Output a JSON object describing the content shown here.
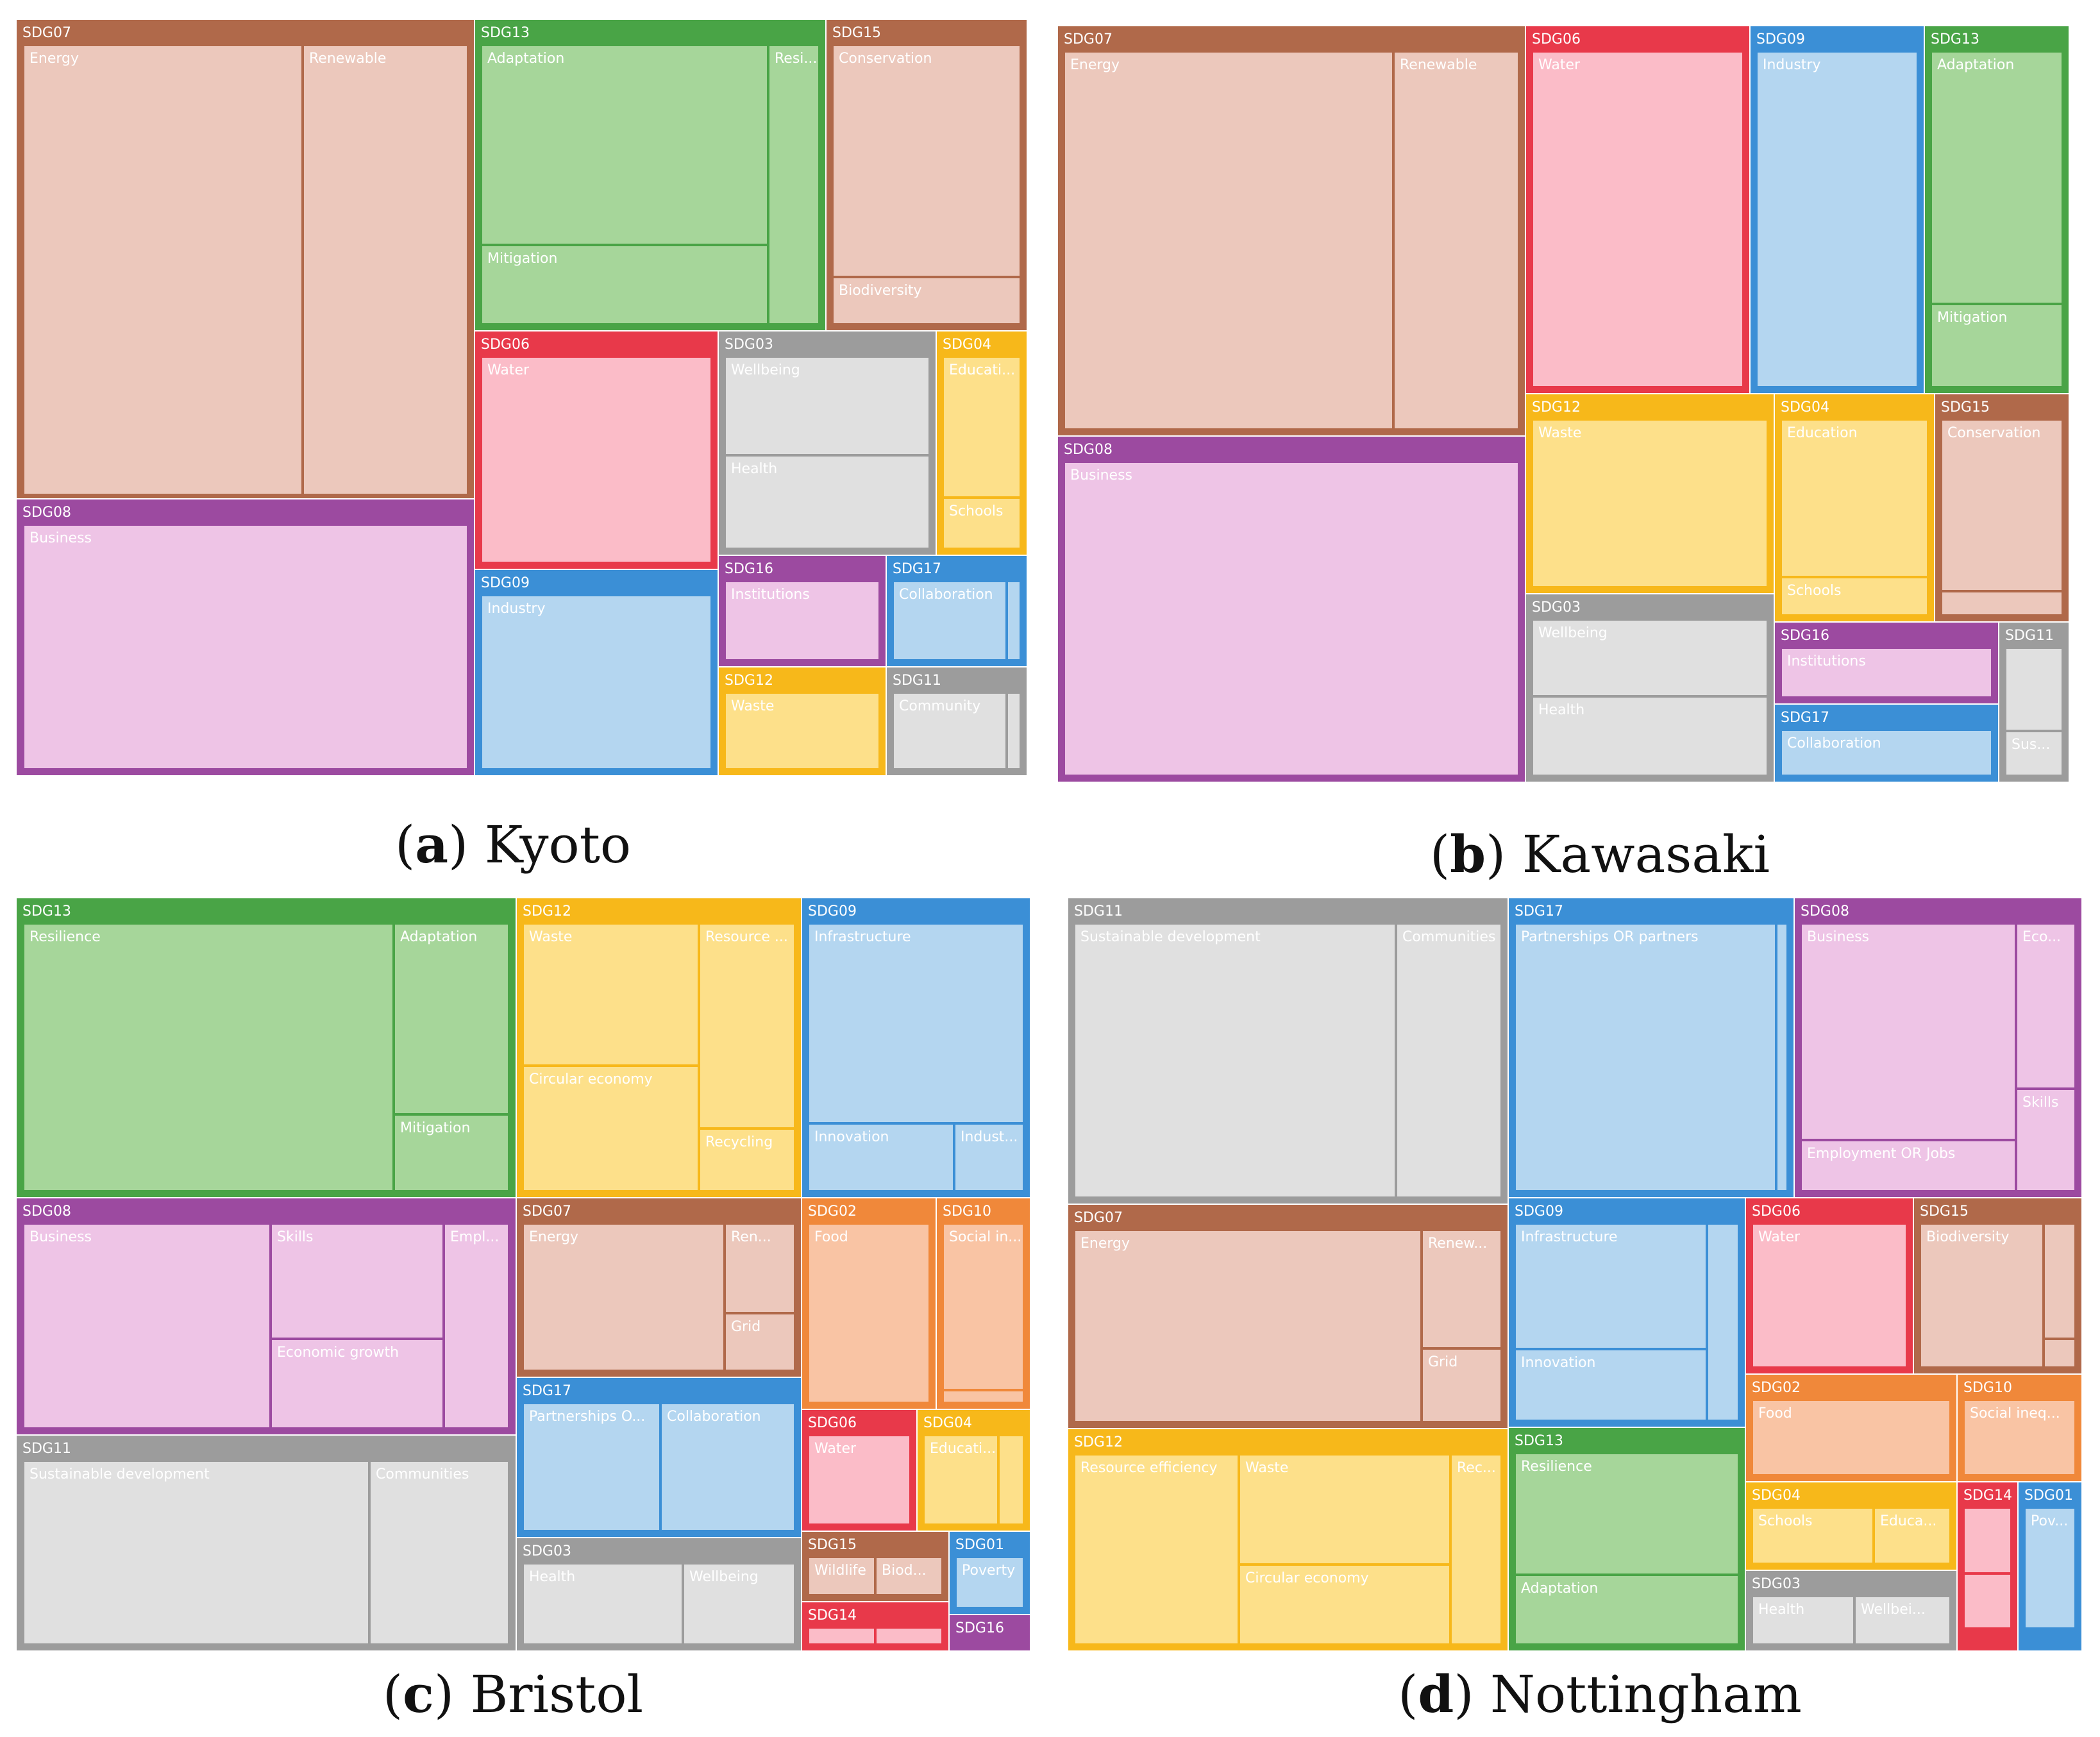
{
  "figure": {
    "colors": {
      "SDG01": "#3b8fd6",
      "SDG02": "#f0883a",
      "SDG03": "#9c9c9c",
      "SDG04": "#f7b81a",
      "SDG06": "#e8394a",
      "SDG07": "#b0694a",
      "SDG08": "#9c4aa0",
      "SDG09": "#3b8fd6",
      "SDG10": "#f0883a",
      "SDG11": "#9c9c9c",
      "SDG12": "#f7b81a",
      "SDG13": "#49a446",
      "SDG14": "#e8394a",
      "SDG15": "#b0694a",
      "SDG16": "#9c4aa0",
      "SDG17": "#3b8fd6"
    },
    "leaf_colors": {
      "SDG01": "#b4d6f0",
      "SDG02": "#f9c4a4",
      "SDG03": "#e0e0e0",
      "SDG04": "#fde08a",
      "SDG06": "#fbbcc8",
      "SDG07": "#ecc8bc",
      "SDG08": "#eec4e6",
      "SDG09": "#b4d6f0",
      "SDG10": "#f9c4a4",
      "SDG11": "#e0e0e0",
      "SDG12": "#fde08a",
      "SDG13": "#a6d69a",
      "SDG14": "#fbbcc8",
      "SDG15": "#ecc8bc",
      "SDG16": "#eec4e6",
      "SDG17": "#b4d6f0"
    }
  },
  "chart_data": [
    {
      "type": "treemap",
      "caption_letter": "a",
      "caption_text": "Kyoto",
      "groups": [
        {
          "sdg": "SDG07",
          "children": [
            {
              "label": "Energy"
            },
            {
              "label": "Renewable"
            }
          ]
        },
        {
          "sdg": "SDG08",
          "children": [
            {
              "label": "Business"
            }
          ]
        },
        {
          "sdg": "SDG13",
          "children": [
            {
              "label": "Adaptation"
            },
            {
              "label": "Mitigation"
            },
            {
              "label": "Resi..."
            }
          ]
        },
        {
          "sdg": "SDG15",
          "children": [
            {
              "label": "Conservation"
            },
            {
              "label": "Biodiversity"
            }
          ]
        },
        {
          "sdg": "SDG06",
          "children": [
            {
              "label": "Water"
            }
          ]
        },
        {
          "sdg": "SDG03",
          "children": [
            {
              "label": "Wellbeing"
            },
            {
              "label": "Health"
            }
          ]
        },
        {
          "sdg": "SDG04",
          "children": [
            {
              "label": "Educati..."
            },
            {
              "label": "Schools"
            }
          ]
        },
        {
          "sdg": "SDG09",
          "children": [
            {
              "label": "Industry"
            }
          ]
        },
        {
          "sdg": "SDG16",
          "children": [
            {
              "label": "Institutions"
            }
          ]
        },
        {
          "sdg": "SDG17",
          "children": [
            {
              "label": "Collaboration"
            },
            {
              "label": ""
            }
          ]
        },
        {
          "sdg": "SDG12",
          "children": [
            {
              "label": "Waste"
            }
          ]
        },
        {
          "sdg": "SDG11",
          "children": [
            {
              "label": "Community"
            },
            {
              "label": ""
            }
          ]
        }
      ]
    },
    {
      "type": "treemap",
      "caption_letter": "b",
      "caption_text": "Kawasaki",
      "groups": [
        {
          "sdg": "SDG07",
          "children": [
            {
              "label": "Energy"
            },
            {
              "label": "Renewable"
            }
          ]
        },
        {
          "sdg": "SDG08",
          "children": [
            {
              "label": "Business"
            }
          ]
        },
        {
          "sdg": "SDG06",
          "children": [
            {
              "label": "Water"
            }
          ]
        },
        {
          "sdg": "SDG09",
          "children": [
            {
              "label": "Industry"
            }
          ]
        },
        {
          "sdg": "SDG13",
          "children": [
            {
              "label": "Adaptation"
            },
            {
              "label": "Mitigation"
            }
          ]
        },
        {
          "sdg": "SDG12",
          "children": [
            {
              "label": "Waste"
            }
          ]
        },
        {
          "sdg": "SDG04",
          "children": [
            {
              "label": "Education"
            },
            {
              "label": "Schools"
            }
          ]
        },
        {
          "sdg": "SDG15",
          "children": [
            {
              "label": "Conservation"
            },
            {
              "label": ""
            }
          ]
        },
        {
          "sdg": "SDG03",
          "children": [
            {
              "label": "Wellbeing"
            },
            {
              "label": "Health"
            }
          ]
        },
        {
          "sdg": "SDG16",
          "children": [
            {
              "label": "Institutions"
            }
          ]
        },
        {
          "sdg": "SDG11",
          "children": [
            {
              "label": ""
            },
            {
              "label": "Sus..."
            }
          ]
        },
        {
          "sdg": "SDG17",
          "children": [
            {
              "label": "Collaboration"
            }
          ]
        }
      ]
    },
    {
      "type": "treemap",
      "caption_letter": "c",
      "caption_text": "Bristol",
      "groups": [
        {
          "sdg": "SDG13",
          "children": [
            {
              "label": "Resilience"
            },
            {
              "label": "Adaptation"
            },
            {
              "label": "Mitigation"
            }
          ]
        },
        {
          "sdg": "SDG12",
          "children": [
            {
              "label": "Waste"
            },
            {
              "label": "Resource ..."
            },
            {
              "label": "Circular economy"
            },
            {
              "label": "Recycling"
            }
          ]
        },
        {
          "sdg": "SDG09",
          "children": [
            {
              "label": "Infrastructure"
            },
            {
              "label": "Innovation"
            },
            {
              "label": "Indust..."
            }
          ]
        },
        {
          "sdg": "SDG08",
          "children": [
            {
              "label": "Business"
            },
            {
              "label": "Skills"
            },
            {
              "label": "Economic growth"
            },
            {
              "label": "Empl..."
            }
          ]
        },
        {
          "sdg": "SDG07",
          "children": [
            {
              "label": "Energy"
            },
            {
              "label": "Ren..."
            },
            {
              "label": "Grid"
            }
          ]
        },
        {
          "sdg": "SDG02",
          "children": [
            {
              "label": "Food"
            }
          ]
        },
        {
          "sdg": "SDG10",
          "children": [
            {
              "label": "Social in..."
            },
            {
              "label": ""
            }
          ]
        },
        {
          "sdg": "SDG17",
          "children": [
            {
              "label": "Partnerships O..."
            },
            {
              "label": "Collaboration"
            }
          ]
        },
        {
          "sdg": "SDG06",
          "children": [
            {
              "label": "Water"
            }
          ]
        },
        {
          "sdg": "SDG04",
          "children": [
            {
              "label": "Educati..."
            },
            {
              "label": ""
            }
          ]
        },
        {
          "sdg": "SDG11",
          "children": [
            {
              "label": "Sustainable development"
            },
            {
              "label": "Communities"
            }
          ]
        },
        {
          "sdg": "SDG03",
          "children": [
            {
              "label": "Health"
            },
            {
              "label": "Wellbeing"
            }
          ]
        },
        {
          "sdg": "SDG15",
          "children": [
            {
              "label": "Wildlife"
            },
            {
              "label": "Biod..."
            }
          ]
        },
        {
          "sdg": "SDG01",
          "children": [
            {
              "label": "Poverty"
            }
          ]
        },
        {
          "sdg": "SDG14",
          "children": [
            {
              "label": ""
            },
            {
              "label": ""
            }
          ]
        },
        {
          "sdg": "SDG16",
          "children": []
        }
      ]
    },
    {
      "type": "treemap",
      "caption_letter": "d",
      "caption_text": "Nottingham",
      "groups": [
        {
          "sdg": "SDG11",
          "children": [
            {
              "label": "Sustainable development"
            },
            {
              "label": "Communities"
            }
          ]
        },
        {
          "sdg": "SDG17",
          "children": [
            {
              "label": "Partnerships OR partners"
            },
            {
              "label": ""
            }
          ]
        },
        {
          "sdg": "SDG08",
          "children": [
            {
              "label": "Business"
            },
            {
              "label": "Eco..."
            },
            {
              "label": "Skills"
            },
            {
              "label": "Employment OR Jobs"
            }
          ]
        },
        {
          "sdg": "SDG07",
          "children": [
            {
              "label": "Energy"
            },
            {
              "label": "Renew..."
            },
            {
              "label": "Grid"
            }
          ]
        },
        {
          "sdg": "SDG09",
          "children": [
            {
              "label": "Infrastructure"
            },
            {
              "label": "Innovation"
            },
            {
              "label": ""
            }
          ]
        },
        {
          "sdg": "SDG06",
          "children": [
            {
              "label": "Water"
            }
          ]
        },
        {
          "sdg": "SDG15",
          "children": [
            {
              "label": "Biodiversity"
            },
            {
              "label": ""
            },
            {
              "label": ""
            }
          ]
        },
        {
          "sdg": "SDG02",
          "children": [
            {
              "label": "Food"
            }
          ]
        },
        {
          "sdg": "SDG10",
          "children": [
            {
              "label": "Social ineq..."
            }
          ]
        },
        {
          "sdg": "SDG12",
          "children": [
            {
              "label": "Resource efficiency"
            },
            {
              "label": "Waste"
            },
            {
              "label": "Circular economy"
            },
            {
              "label": "Rec..."
            }
          ]
        },
        {
          "sdg": "SDG13",
          "children": [
            {
              "label": "Resilience"
            },
            {
              "label": "Adaptation"
            }
          ]
        },
        {
          "sdg": "SDG04",
          "children": [
            {
              "label": "Schools"
            },
            {
              "label": "Educa..."
            }
          ]
        },
        {
          "sdg": "SDG14",
          "children": [
            {
              "label": ""
            },
            {
              "label": ""
            }
          ]
        },
        {
          "sdg": "SDG01",
          "children": [
            {
              "label": "Pov..."
            }
          ]
        },
        {
          "sdg": "SDG03",
          "children": [
            {
              "label": "Health"
            },
            {
              "label": "Wellbei..."
            }
          ]
        }
      ]
    }
  ]
}
